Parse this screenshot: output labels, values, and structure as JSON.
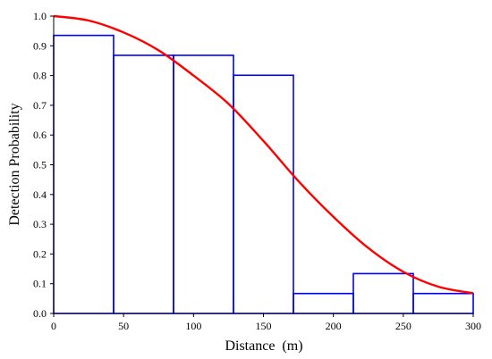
{
  "chart_data": {
    "type": "bar",
    "title": "",
    "xlabel": "Distance  (m)",
    "ylabel": "Detection Probability",
    "xlim": [
      0,
      300
    ],
    "ylim": [
      0,
      1.0
    ],
    "xticks": [
      0,
      50,
      100,
      150,
      200,
      250,
      300
    ],
    "yticks": [
      0.0,
      0.1,
      0.2,
      0.3,
      0.4,
      0.5,
      0.6,
      0.7,
      0.8,
      0.9,
      1.0
    ],
    "grid": false,
    "histogram_bins": [
      {
        "x0": 0,
        "x1": 42.86,
        "value": 0.935
      },
      {
        "x0": 42.86,
        "x1": 85.71,
        "value": 0.868
      },
      {
        "x0": 85.71,
        "x1": 128.57,
        "value": 0.868
      },
      {
        "x0": 128.57,
        "x1": 171.43,
        "value": 0.801
      },
      {
        "x0": 171.43,
        "x1": 214.29,
        "value": 0.067
      },
      {
        "x0": 214.29,
        "x1": 257.14,
        "value": 0.134
      },
      {
        "x0": 257.14,
        "x1": 300,
        "value": 0.067
      }
    ],
    "curve": {
      "x": [
        0,
        25,
        50,
        75,
        100,
        125,
        150,
        175,
        200,
        225,
        250,
        275,
        300
      ],
      "y": [
        1.0,
        0.985,
        0.945,
        0.885,
        0.8,
        0.705,
        0.58,
        0.445,
        0.325,
        0.22,
        0.14,
        0.09,
        0.068
      ]
    },
    "colors": {
      "bars": "#0000ff",
      "curve": "#ff0000",
      "axis": "#000000"
    }
  }
}
